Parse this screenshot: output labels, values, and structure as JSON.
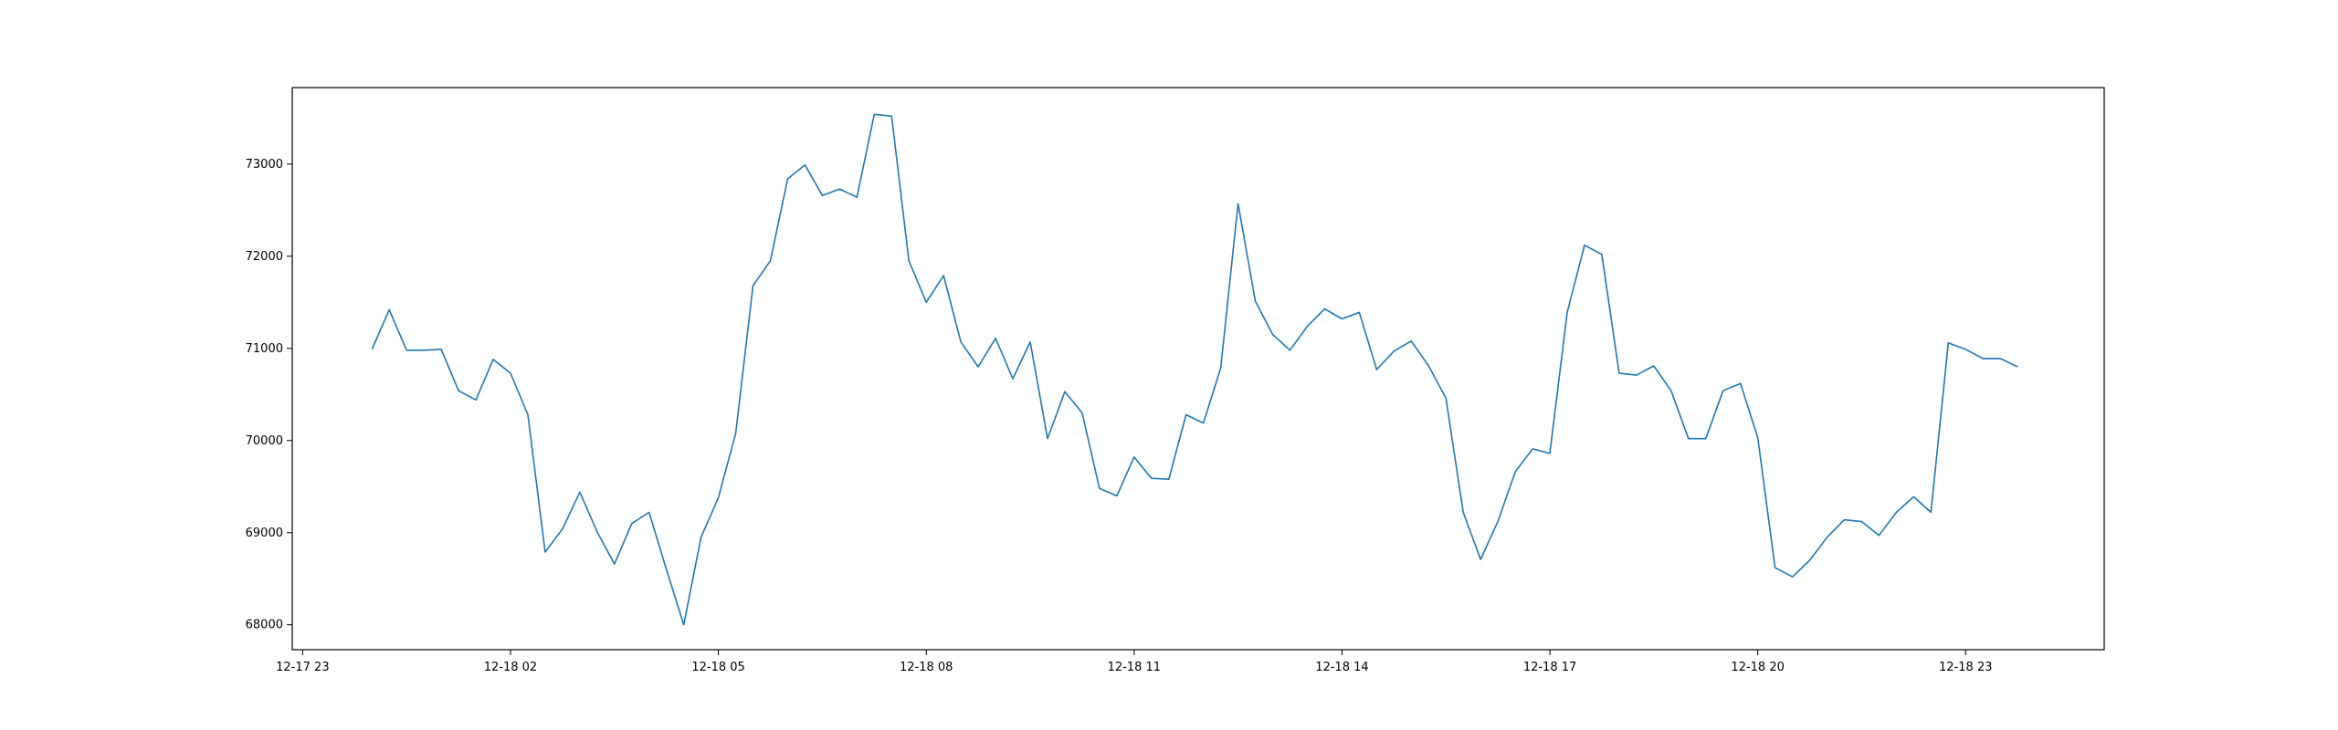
{
  "chart_data": {
    "type": "line",
    "title": "",
    "xlabel": "",
    "ylabel": "",
    "x_axis": {
      "type": "time",
      "ticks": [
        {
          "label": "12-17 23",
          "hour": 0
        },
        {
          "label": "12-18 02",
          "hour": 3
        },
        {
          "label": "12-18 05",
          "hour": 6
        },
        {
          "label": "12-18 08",
          "hour": 9
        },
        {
          "label": "12-18 11",
          "hour": 12
        },
        {
          "label": "12-18 14",
          "hour": 15
        },
        {
          "label": "12-18 17",
          "hour": 18
        },
        {
          "label": "12-18 20",
          "hour": 21
        },
        {
          "label": "12-18 23",
          "hour": 24
        }
      ],
      "range_hours": [
        -0.15,
        26.0
      ]
    },
    "y_axis": {
      "ticks": [
        68000,
        69000,
        70000,
        71000,
        72000,
        73000
      ],
      "range": [
        67730,
        73830
      ]
    },
    "grid": false,
    "line_color": "#1f77b4",
    "series": [
      {
        "start_hour": 1.0,
        "step_hours": 0.25,
        "values": [
          70990,
          71420,
          70980,
          70980,
          70990,
          70540,
          70440,
          70880,
          70730,
          70280,
          68790,
          69040,
          69440,
          69010,
          68660,
          69100,
          69220,
          68600,
          68000,
          68950,
          69380,
          70080,
          71680,
          71950,
          72840,
          72990,
          72660,
          72730,
          72640,
          73540,
          73520,
          71950,
          71500,
          71790,
          71070,
          70800,
          71110,
          70670,
          71070,
          70020,
          70530,
          70300,
          69480,
          69400,
          69820,
          69590,
          69580,
          70280,
          70190,
          70790,
          72570,
          71510,
          71150,
          70980,
          71240,
          71430,
          71320,
          71390,
          70770,
          70970,
          71080,
          70810,
          70460,
          69220,
          68710,
          69120,
          69660,
          69910,
          69860,
          71390,
          72120,
          72020,
          70730,
          70710,
          70810,
          70540,
          70020,
          70020,
          70540,
          70620,
          70030,
          68620,
          68520,
          68700,
          68950,
          69140,
          69120,
          68970,
          69220,
          69390,
          69220,
          71060,
          70990,
          70890,
          70890,
          70800
        ]
      }
    ]
  }
}
